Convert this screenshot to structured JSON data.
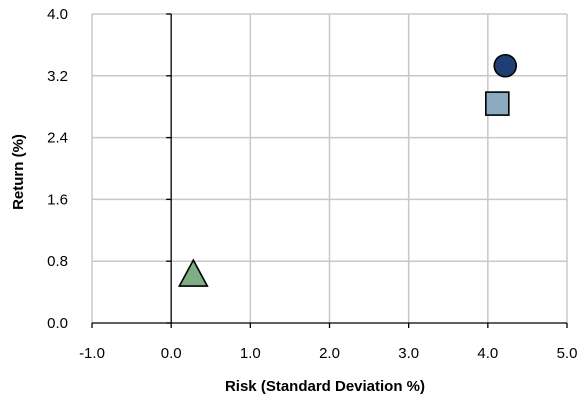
{
  "chart_data": {
    "type": "scatter",
    "xlabel": "Risk (Standard Deviation %)",
    "ylabel": "Return (%)",
    "xlim": [
      -1.0,
      5.0
    ],
    "ylim": [
      0.0,
      4.0
    ],
    "x_ticks": [
      "-1.0",
      "0.0",
      "1.0",
      "2.0",
      "3.0",
      "4.0",
      "5.0"
    ],
    "y_ticks": [
      "0.0",
      "0.8",
      "1.6",
      "2.4",
      "3.2",
      "4.0"
    ],
    "grid": true,
    "legend": "none",
    "series": [
      {
        "marker": "circle",
        "color": "#1f3f73",
        "points": [
          {
            "x": 4.22,
            "y": 3.33
          }
        ]
      },
      {
        "marker": "square",
        "color": "#8aabc0",
        "points": [
          {
            "x": 4.12,
            "y": 2.84
          }
        ]
      },
      {
        "marker": "triangle",
        "color": "#7fae84",
        "points": [
          {
            "x": 0.28,
            "y": 0.62
          }
        ]
      }
    ]
  }
}
